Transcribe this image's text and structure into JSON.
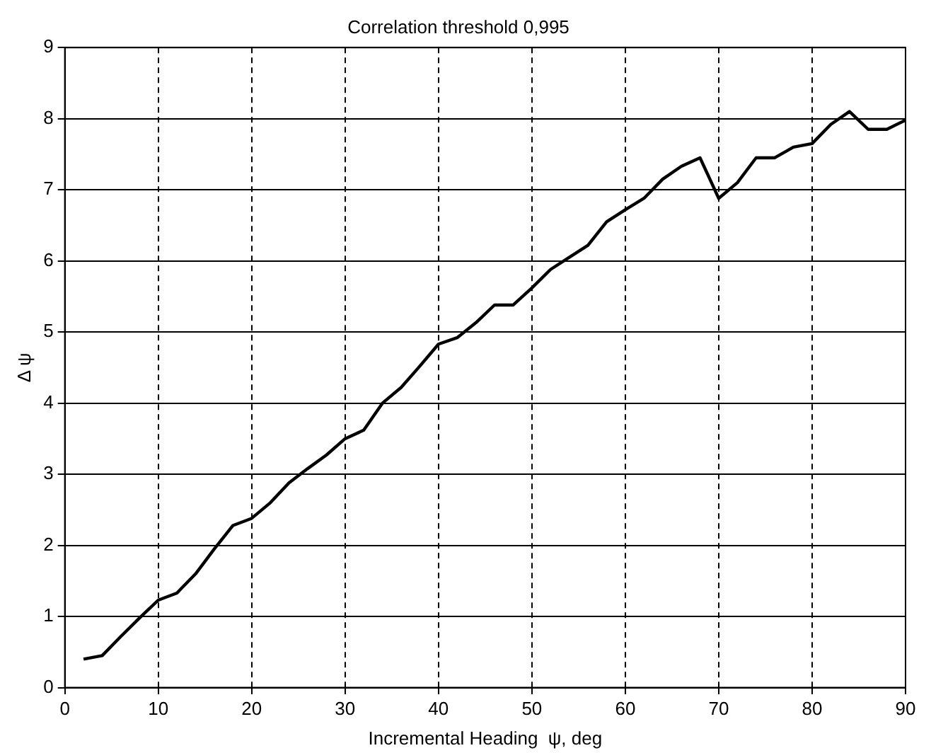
{
  "chart_data": {
    "type": "line",
    "title": "Correlation threshold 0,995",
    "xlabel": "Incremental Heading  ψ, deg",
    "ylabel": "Δ ψ",
    "x": [
      2,
      4,
      6,
      8,
      10,
      12,
      14,
      16,
      18,
      20,
      22,
      24,
      26,
      28,
      30,
      32,
      34,
      36,
      38,
      40,
      42,
      44,
      46,
      48,
      50,
      52,
      54,
      56,
      58,
      60,
      62,
      64,
      66,
      68,
      70,
      72,
      74,
      76,
      78,
      80,
      82,
      84,
      86,
      88,
      90
    ],
    "series": [
      {
        "color": "#000000",
        "values": [
          0.4,
          0.45,
          0.72,
          0.98,
          1.23,
          1.33,
          1.6,
          1.95,
          2.28,
          2.38,
          2.6,
          2.88,
          3.08,
          3.27,
          3.5,
          3.62,
          4.0,
          4.22,
          4.52,
          4.83,
          4.92,
          5.13,
          5.38,
          5.38,
          5.62,
          5.88,
          6.05,
          6.22,
          6.55,
          6.72,
          6.88,
          7.15,
          7.33,
          7.45,
          6.88,
          7.1,
          7.45,
          7.45,
          7.6,
          7.65,
          7.92,
          8.1,
          7.85,
          7.85,
          7.98
        ]
      }
    ],
    "xlim": [
      0,
      90
    ],
    "xticks": [
      0,
      10,
      20,
      30,
      40,
      50,
      60,
      70,
      80,
      90
    ],
    "ylim": [
      0,
      9
    ],
    "yticks": [
      0,
      1,
      2,
      3,
      4,
      5,
      6,
      7,
      8,
      9
    ],
    "grid": true,
    "legend": false,
    "marker": "none",
    "line_style": "solid"
  }
}
